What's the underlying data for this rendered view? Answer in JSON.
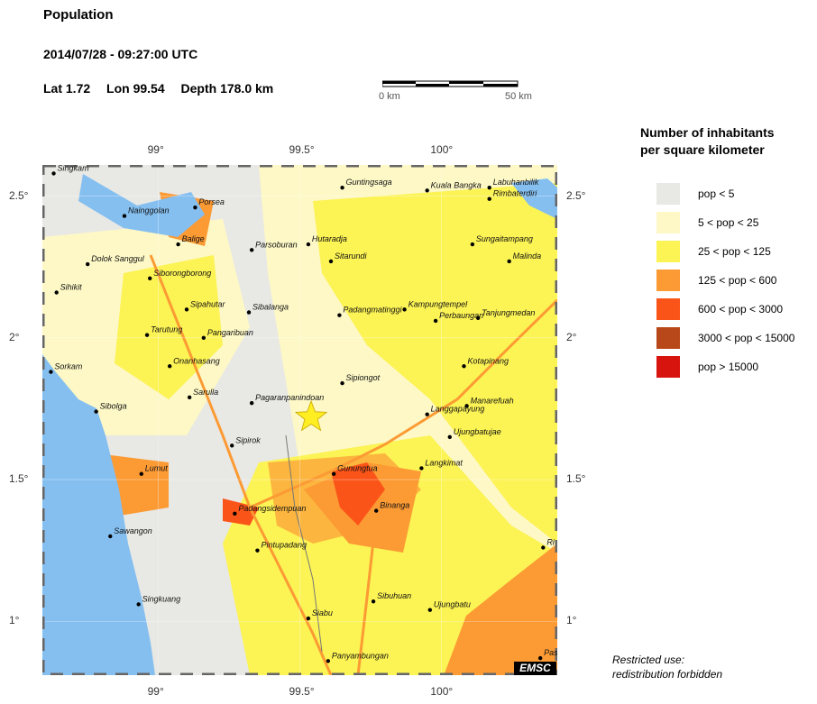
{
  "header": {
    "title": "Population",
    "datetime": "2014/07/28 - 09:27:00 UTC",
    "lat": "Lat  1.72",
    "lon": "Lon  99.54",
    "depth": "Depth 178.0 km"
  },
  "scale": {
    "left_label": "0 km",
    "right_label": "50 km"
  },
  "axes": {
    "lon_ticks": [
      {
        "value": 99.0,
        "label": "99°"
      },
      {
        "value": 99.5,
        "label": "99.5°"
      },
      {
        "value": 100.0,
        "label": "100°"
      }
    ],
    "lat_ticks": [
      {
        "value": 2.5,
        "label": "2.5°"
      },
      {
        "value": 2.0,
        "label": "2°"
      },
      {
        "value": 1.5,
        "label": "1.5°"
      },
      {
        "value": 1.0,
        "label": "1°"
      }
    ],
    "lon_range": [
      98.59,
      100.41
    ],
    "lat_range": [
      0.81,
      2.61
    ]
  },
  "epicenter": {
    "lat": 1.72,
    "lon": 99.54,
    "color": "#ffee22"
  },
  "places": [
    {
      "name": "Singkam",
      "lat": 2.58,
      "lon": 98.63
    },
    {
      "name": "Porsea",
      "lat": 2.46,
      "lon": 99.13
    },
    {
      "name": "Nainggolan",
      "lat": 2.43,
      "lon": 98.88
    },
    {
      "name": "Guntingsaga",
      "lat": 2.53,
      "lon": 99.65
    },
    {
      "name": "Kuala Bangka",
      "lat": 2.52,
      "lon": 99.95
    },
    {
      "name": "Labuhanbilik",
      "lat": 2.53,
      "lon": 100.17
    },
    {
      "name": "Rimbaterdiri",
      "lat": 2.49,
      "lon": 100.17
    },
    {
      "name": "Balige",
      "lat": 2.33,
      "lon": 99.07
    },
    {
      "name": "Parsoburan",
      "lat": 2.31,
      "lon": 99.33
    },
    {
      "name": "Hutaradja",
      "lat": 2.33,
      "lon": 99.53
    },
    {
      "name": "Sungaitampang",
      "lat": 2.33,
      "lon": 100.11
    },
    {
      "name": "Dolok Sanggul",
      "lat": 2.26,
      "lon": 98.75
    },
    {
      "name": "Sitarundi",
      "lat": 2.27,
      "lon": 99.61
    },
    {
      "name": "Malinda",
      "lat": 2.27,
      "lon": 100.24
    },
    {
      "name": "Siborongborong",
      "lat": 2.21,
      "lon": 98.97
    },
    {
      "name": "Sihikit",
      "lat": 2.16,
      "lon": 98.64
    },
    {
      "name": "Sipahutar",
      "lat": 2.1,
      "lon": 99.1
    },
    {
      "name": "Sibalanga",
      "lat": 2.09,
      "lon": 99.32
    },
    {
      "name": "Padangmatinggi",
      "lat": 2.08,
      "lon": 99.64
    },
    {
      "name": "Kampungtempel",
      "lat": 2.1,
      "lon": 99.87
    },
    {
      "name": "Perbaungan",
      "lat": 2.06,
      "lon": 99.98
    },
    {
      "name": "Tanjungmedan",
      "lat": 2.07,
      "lon": 100.13
    },
    {
      "name": "Tarutung",
      "lat": 2.01,
      "lon": 98.96
    },
    {
      "name": "Pangaribuan",
      "lat": 2.0,
      "lon": 99.16
    },
    {
      "name": "Sorkam",
      "lat": 1.88,
      "lon": 98.62
    },
    {
      "name": "Onanhasang",
      "lat": 1.9,
      "lon": 99.04
    },
    {
      "name": "Kotapinang",
      "lat": 1.9,
      "lon": 100.08
    },
    {
      "name": "Sipiongot",
      "lat": 1.84,
      "lon": 99.65
    },
    {
      "name": "Sarulla",
      "lat": 1.79,
      "lon": 99.11
    },
    {
      "name": "Pagaranpanindoan",
      "lat": 1.77,
      "lon": 99.33
    },
    {
      "name": "Sibolga",
      "lat": 1.74,
      "lon": 98.78
    },
    {
      "name": "Manarefuah",
      "lat": 1.76,
      "lon": 100.09
    },
    {
      "name": "Langgapayung",
      "lat": 1.73,
      "lon": 99.95
    },
    {
      "name": "Ujungbatujae",
      "lat": 1.65,
      "lon": 100.03
    },
    {
      "name": "Sipirok",
      "lat": 1.62,
      "lon": 99.26
    },
    {
      "name": "Gunungtua",
      "lat": 1.52,
      "lon": 99.62
    },
    {
      "name": "Langkimat",
      "lat": 1.54,
      "lon": 99.93
    },
    {
      "name": "Lumut",
      "lat": 1.52,
      "lon": 98.94
    },
    {
      "name": "Binanga",
      "lat": 1.39,
      "lon": 99.77
    },
    {
      "name": "Padangsidempuan",
      "lat": 1.38,
      "lon": 99.27
    },
    {
      "name": "Sawangon",
      "lat": 1.3,
      "lon": 98.83
    },
    {
      "name": "Pintupadang",
      "lat": 1.25,
      "lon": 99.35
    },
    {
      "name": "Ri",
      "lat": 1.26,
      "lon": 100.36
    },
    {
      "name": "Sibuhuan",
      "lat": 1.07,
      "lon": 99.76
    },
    {
      "name": "Ujungbatu",
      "lat": 1.04,
      "lon": 99.96
    },
    {
      "name": "Singkuang",
      "lat": 1.06,
      "lon": 98.93
    },
    {
      "name": "Siabu",
      "lat": 1.01,
      "lon": 99.53
    },
    {
      "name": "Panyambungan",
      "lat": 0.86,
      "lon": 99.6
    },
    {
      "name": "Pasirp",
      "lat": 0.87,
      "lon": 100.35
    }
  ],
  "legend": {
    "title_line1": "Number of inhabitants",
    "title_line2": "per square kilometer",
    "items": [
      {
        "label": "pop < 5",
        "color": "#e8e8e4"
      },
      {
        "label": "5 < pop < 25",
        "color": "#fdf8c6"
      },
      {
        "label": "25 < pop < 125",
        "color": "#fcf354"
      },
      {
        "label": "125 < pop < 600",
        "color": "#fc9a34"
      },
      {
        "label": "600 < pop < 3000",
        "color": "#fb5419"
      },
      {
        "label": "3000 < pop < 15000",
        "color": "#b8481a"
      },
      {
        "label": "pop > 15000",
        "color": "#d8140f"
      }
    ]
  },
  "map_colors": {
    "water": "#85bff0",
    "low": "#e8e8e4",
    "light": "#fdf8c6",
    "medium": "#fcf354",
    "high": "#fc9a34",
    "veryhigh": "#fb5419"
  },
  "footer": {
    "restricted_line1": "Restricted use:",
    "restricted_line2": "redistribution forbidden",
    "logo": "EMSC"
  }
}
